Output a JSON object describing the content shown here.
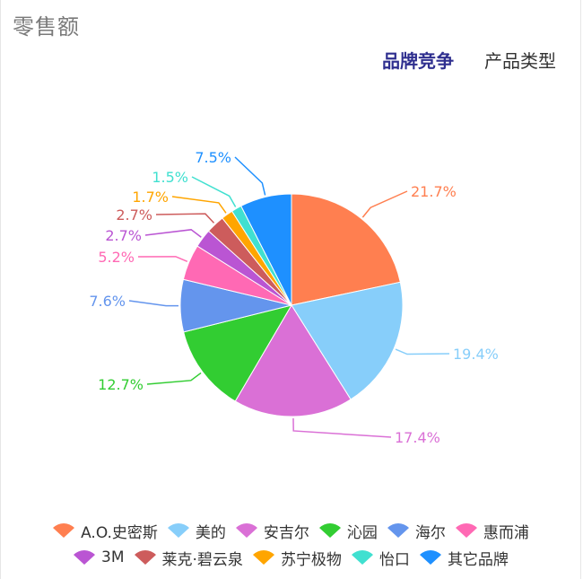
{
  "header": {
    "title": "零售额",
    "tabs": [
      {
        "label": "品牌竞争",
        "active": true
      },
      {
        "label": "产品类型",
        "active": false
      }
    ]
  },
  "chart_data": {
    "type": "pie",
    "labels": [
      "A.O.史密斯",
      "美的",
      "安吉尔",
      "沁园",
      "海尔",
      "惠而浦",
      "3M",
      "莱克·碧云泉",
      "苏宁极物",
      "怡口",
      "其它品牌"
    ],
    "values": [
      21.7,
      19.4,
      17.4,
      12.7,
      7.6,
      5.2,
      2.7,
      2.7,
      1.7,
      1.5,
      7.5
    ],
    "value_labels": [
      "21.7%",
      "19.4%",
      "17.4%",
      "12.7%",
      "7.6%",
      "5.2%",
      "2.7%",
      "2.7%",
      "1.7%",
      "1.5%",
      "7.5%"
    ],
    "colors": [
      "#ff7f50",
      "#87cefa",
      "#da70d6",
      "#32cd32",
      "#6495ed",
      "#ff69b4",
      "#ba55d3",
      "#cd5c5c",
      "#ffa500",
      "#40e0d0",
      "#1e90ff"
    ],
    "legend_position": "bottom"
  }
}
